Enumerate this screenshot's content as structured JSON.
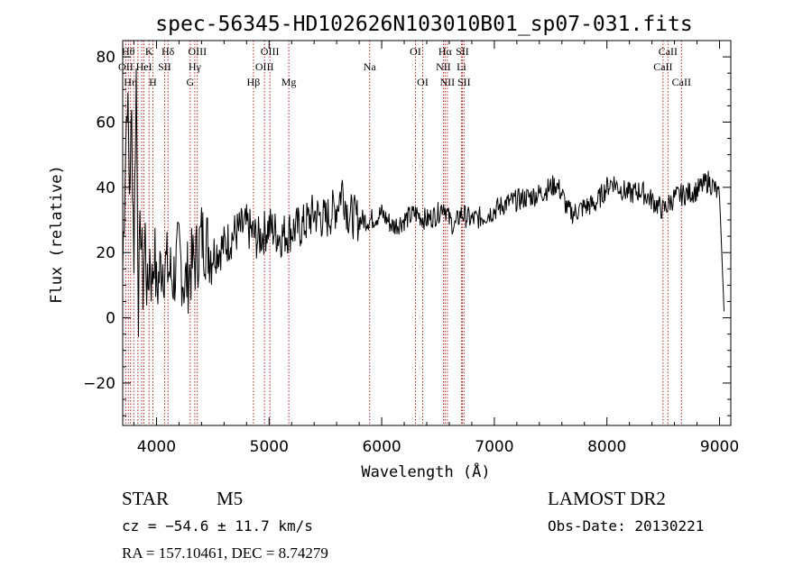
{
  "chart_data": {
    "type": "line",
    "title": "spec-56345-HD102626N103010B01_sp07-031.fits",
    "xlabel": "Wavelength (Å)",
    "ylabel": "Flux (relative)",
    "xlim": [
      3700,
      9100
    ],
    "ylim": [
      -33,
      85
    ],
    "x_ticks": [
      4000,
      5000,
      6000,
      7000,
      8000,
      9000
    ],
    "y_ticks": [
      -20,
      0,
      20,
      40,
      60,
      80
    ],
    "grid": false,
    "line_color": "#000000",
    "marker_color": "#b22222",
    "series": [
      {
        "x": [
          3700,
          3720,
          3740,
          3760,
          3780,
          3800,
          3820,
          3840,
          3860,
          3880,
          3900,
          3920,
          3940,
          3960,
          3980,
          4000,
          4050,
          4100,
          4150,
          4200,
          4250,
          4300,
          4350,
          4400,
          4500,
          4600,
          4700,
          4800,
          4900,
          5000,
          5100,
          5200,
          5300,
          5400,
          5500,
          5600,
          5650,
          5700,
          5800,
          5900,
          6000,
          6100,
          6200,
          6300,
          6400,
          6500,
          6550,
          6600,
          6650,
          6700,
          6800,
          6900,
          7000,
          7100,
          7200,
          7300,
          7400,
          7500,
          7550,
          7600,
          7650,
          7700,
          7800,
          7900,
          8000,
          8050,
          8100,
          8200,
          8300,
          8400,
          8500,
          8550,
          8600,
          8700,
          8800,
          8900,
          8950,
          9000,
          9020,
          9040
        ],
        "y": [
          15,
          45,
          70,
          40,
          60,
          20,
          75,
          5,
          30,
          10,
          25,
          5,
          20,
          10,
          22,
          8,
          18,
          15,
          12,
          20,
          10,
          15,
          18,
          25,
          20,
          22,
          26,
          28,
          24,
          28,
          25,
          27,
          28,
          32,
          30,
          34,
          40,
          32,
          30,
          30,
          32,
          28,
          30,
          32,
          30,
          32,
          35,
          30,
          28,
          32,
          30,
          31,
          33,
          35,
          36,
          37,
          38,
          40,
          41,
          38,
          33,
          32,
          34,
          35,
          40,
          42,
          40,
          38,
          39,
          36,
          33,
          35,
          37,
          38,
          39,
          42,
          40,
          37,
          20,
          2
        ]
      }
    ],
    "line_markers": [
      {
        "x": 3727,
        "label": "OII",
        "row": 2
      },
      {
        "x": 3750,
        "label": "Hθ",
        "row": 1
      },
      {
        "x": 3770,
        "label": "Hη",
        "row": 3
      },
      {
        "x": 3798,
        "label": "",
        "row": 0
      },
      {
        "x": 3835,
        "label": "",
        "row": 0
      },
      {
        "x": 3869,
        "label": "",
        "row": 0
      },
      {
        "x": 3889,
        "label": "HeI",
        "row": 2
      },
      {
        "x": 3934,
        "label": "K",
        "row": 1
      },
      {
        "x": 3968,
        "label": "H",
        "row": 3
      },
      {
        "x": 4072,
        "label": "SII",
        "row": 2
      },
      {
        "x": 4102,
        "label": "Hδ",
        "row": 1
      },
      {
        "x": 4300,
        "label": "G",
        "row": 3
      },
      {
        "x": 4340,
        "label": "Hγ",
        "row": 2
      },
      {
        "x": 4363,
        "label": "OIII",
        "row": 1
      },
      {
        "x": 4861,
        "label": "Hβ",
        "row": 3
      },
      {
        "x": 4959,
        "label": "OIII",
        "row": 2
      },
      {
        "x": 5007,
        "label": "OIII",
        "row": 1
      },
      {
        "x": 5175,
        "label": "Mg",
        "row": 3
      },
      {
        "x": 5893,
        "label": "Na",
        "row": 2
      },
      {
        "x": 6300,
        "label": "OI",
        "row": 1
      },
      {
        "x": 6364,
        "label": "OI",
        "row": 3
      },
      {
        "x": 6548,
        "label": "NII",
        "row": 2
      },
      {
        "x": 6563,
        "label": "Hα",
        "row": 1
      },
      {
        "x": 6583,
        "label": "NII",
        "row": 3
      },
      {
        "x": 6708,
        "label": "Li",
        "row": 2
      },
      {
        "x": 6716,
        "label": "SII",
        "row": 1
      },
      {
        "x": 6731,
        "label": "SII",
        "row": 3
      },
      {
        "x": 8498,
        "label": "CaII",
        "row": 2
      },
      {
        "x": 8542,
        "label": "CaII",
        "row": 1
      },
      {
        "x": 8662,
        "label": "CaII",
        "row": 3
      }
    ]
  },
  "footer": {
    "object_type": "STAR",
    "subclass": "M5",
    "survey": "LAMOST DR2",
    "redshift": "cz = −54.6 ± 11.7 km/s",
    "obs_date": "Obs-Date: 20130221",
    "coords": "RA = 157.10461, DEC =   8.74279"
  }
}
